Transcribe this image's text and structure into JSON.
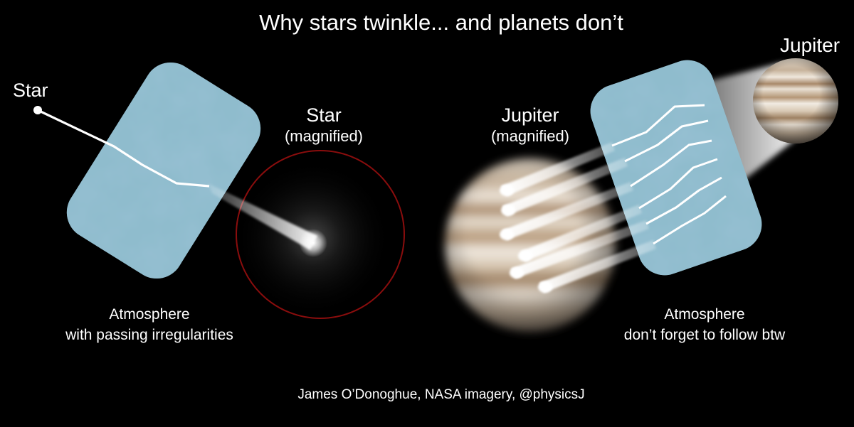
{
  "title": "Why stars twinkle... and planets don’t",
  "labels": {
    "star": "Star",
    "star_magnified_name": "Star",
    "star_magnified_note": "(magnified)",
    "jupiter": "Jupiter",
    "jupiter_magnified_name": "Jupiter",
    "jupiter_magnified_note": "(magnified)"
  },
  "captions": {
    "left_line1": "Atmosphere",
    "left_line2": "with passing irregularities",
    "right_line1": "Atmosphere",
    "right_line2": "don’t forget to follow btw"
  },
  "credit": "James O’Donoghue, NASA imagery, @physicsJ",
  "colors": {
    "background": "#000000",
    "atmosphere": "#8fbccd",
    "star_circle": "#8a0d0d",
    "jupiter_band": "#a8896a",
    "light_ray": "#ffffff"
  }
}
